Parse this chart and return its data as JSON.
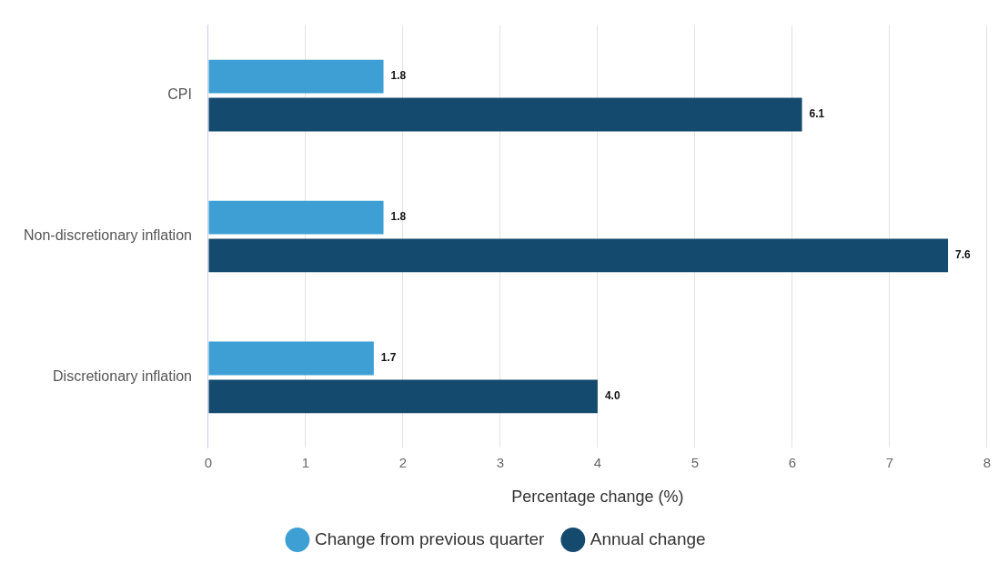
{
  "chart_data": {
    "type": "bar",
    "orientation": "horizontal",
    "xlabel": "Percentage change (%)",
    "categories": [
      "CPI",
      "Non-discretionary inflation",
      "Discretionary inflation"
    ],
    "series": [
      {
        "name": "Change from previous quarter",
        "color": "#3d9fd3",
        "values": [
          1.8,
          1.8,
          1.7
        ],
        "value_labels": [
          "1.8",
          "1.8",
          "1.7"
        ]
      },
      {
        "name": "Annual change",
        "color": "#144a6e",
        "values": [
          6.1,
          7.6,
          4.0
        ],
        "value_labels": [
          "6.1",
          "7.6",
          "4.0"
        ]
      }
    ],
    "xlim": [
      0,
      8
    ],
    "xticks": [
      0,
      1,
      2,
      3,
      4,
      5,
      6,
      7,
      8
    ],
    "grid": "x",
    "legend": "bottom"
  }
}
